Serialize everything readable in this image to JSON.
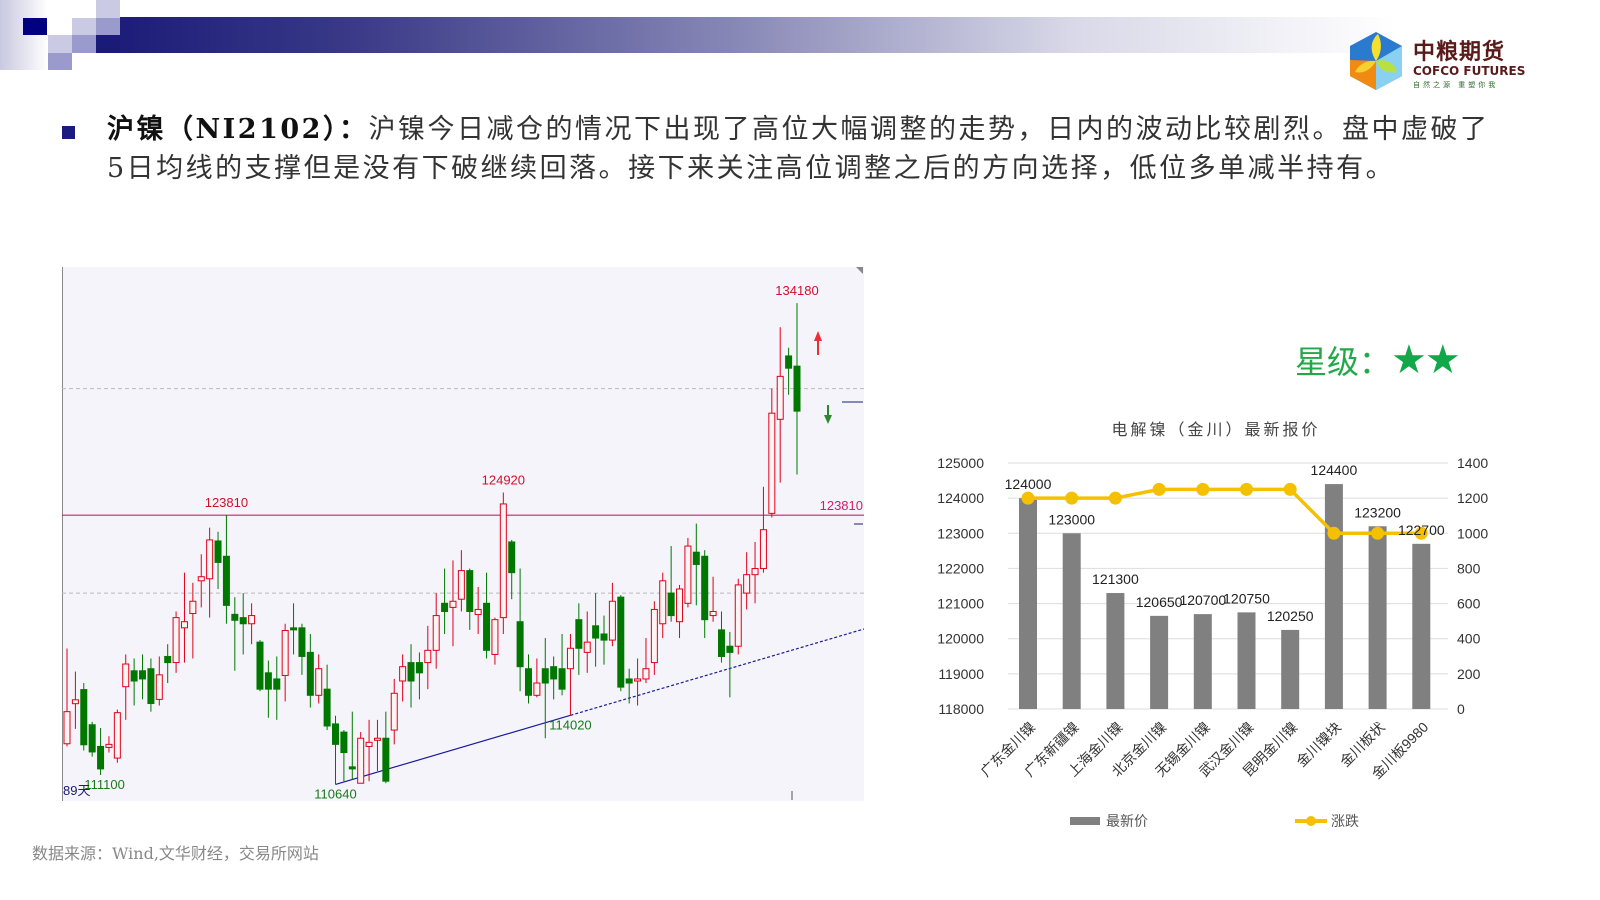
{
  "header": {
    "logo": {
      "name_cn": "中粮期货",
      "name_en": "COFCO FUTURES",
      "slogan": "自然之源 重塑你我"
    },
    "colors": {
      "band_dark": "#1a1a78",
      "band_light": "#ffffff"
    }
  },
  "commentary": {
    "title": "沪镍（NI2102）：",
    "body": "沪镍今日减仓的情况下出现了高位大幅调整的走势，日内的波动比较剧烈。盘中虚破了5日均线的支撑但是没有下破继续回落。接下来关注高位调整之后的方向选择，低位多单减半持有。"
  },
  "rating": {
    "label": "星级：",
    "stars": 2,
    "stars_text": "★★",
    "color": "#22a84a"
  },
  "source": "数据来源：Wind,文华财经，交易所网站",
  "chart_data": [
    {
      "type": "candlestick",
      "period_label": "89天",
      "colors": {
        "up": "#e0001a",
        "down": "#007800",
        "resistance": "#d0206a",
        "trendline": "#1a1aa0"
      },
      "ylim": [
        109830,
        135950
      ],
      "gridlines": [
        120000,
        130000
      ],
      "resistance_level": 123810,
      "annotations": [
        {
          "text": "123810",
          "kind": "high",
          "index": 19
        },
        {
          "text": "124920",
          "kind": "high",
          "index": 52
        },
        {
          "text": "134180",
          "kind": "high",
          "index": 87
        },
        {
          "text": "111100",
          "kind": "low",
          "index": 4
        },
        {
          "text": "110640",
          "kind": "low",
          "index": 32
        },
        {
          "text": "114020",
          "kind": "low",
          "index": 60
        },
        {
          "text": "123810",
          "kind": "right-level"
        }
      ],
      "trendline": {
        "from": {
          "index": 32,
          "price": 110640
        },
        "via": {
          "index": 60,
          "price": 114020
        }
      },
      "ohlc": [
        [
          112630,
          117290,
          112500,
          114200
        ],
        [
          114590,
          116160,
          113360,
          114780
        ],
        [
          115280,
          115600,
          112300,
          112580
        ],
        [
          113560,
          113700,
          112000,
          112230
        ],
        [
          112500,
          113400,
          111100,
          111400
        ],
        [
          112450,
          113000,
          112200,
          112600
        ],
        [
          111930,
          114300,
          111700,
          114150
        ],
        [
          115420,
          117000,
          113800,
          116530
        ],
        [
          116200,
          116800,
          114500,
          115700
        ],
        [
          116200,
          117000,
          114800,
          115800
        ],
        [
          116300,
          116800,
          114200,
          114600
        ],
        [
          114800,
          116900,
          114500,
          116000
        ],
        [
          116900,
          117500,
          115600,
          116600
        ],
        [
          116600,
          119100,
          116100,
          118800
        ],
        [
          118300,
          121000,
          116600,
          118600
        ],
        [
          119000,
          120500,
          116800,
          119600
        ],
        [
          120600,
          121900,
          119300,
          120800
        ],
        [
          120700,
          123200,
          118800,
          122600
        ],
        [
          122550,
          123000,
          120200,
          121500
        ],
        [
          121800,
          123810,
          118500,
          119400
        ],
        [
          118960,
          119800,
          116200,
          118670
        ],
        [
          118800,
          120000,
          117000,
          118500
        ],
        [
          118500,
          119500,
          117500,
          118900
        ],
        [
          117600,
          117700,
          115200,
          115300
        ],
        [
          116100,
          116700,
          113900,
          115300
        ],
        [
          115800,
          116900,
          113800,
          115300
        ],
        [
          115970,
          118500,
          114700,
          118170
        ],
        [
          118300,
          119500,
          117000,
          118200
        ],
        [
          118300,
          118500,
          116000,
          116900
        ],
        [
          117100,
          118000,
          114400,
          115000
        ],
        [
          115000,
          117000,
          114600,
          116300
        ],
        [
          115300,
          116500,
          113300,
          113500
        ],
        [
          113600,
          114000,
          110640,
          112600
        ],
        [
          113200,
          113300,
          110800,
          112200
        ],
        [
          111500,
          114200,
          110900,
          111400
        ],
        [
          110700,
          113200,
          110700,
          112900
        ],
        [
          112500,
          113800,
          110800,
          112700
        ],
        [
          112800,
          113800,
          111300,
          112900
        ],
        [
          112900,
          114200,
          110700,
          110800
        ],
        [
          113300,
          115800,
          112600,
          115100
        ],
        [
          115700,
          117000,
          114700,
          116400
        ],
        [
          116600,
          117500,
          114400,
          115700
        ],
        [
          116600,
          117100,
          114800,
          116100
        ],
        [
          116600,
          118400,
          115300,
          117200
        ],
        [
          117200,
          120000,
          116300,
          118900
        ],
        [
          119500,
          121200,
          118000,
          119100
        ],
        [
          119300,
          121600,
          117400,
          119600
        ],
        [
          119700,
          122100,
          119100,
          121100
        ],
        [
          121100,
          121200,
          118200,
          119100
        ],
        [
          118950,
          120300,
          118000,
          119200
        ],
        [
          119500,
          121000,
          116800,
          117200
        ],
        [
          117000,
          118800,
          116500,
          118700
        ],
        [
          118800,
          124920,
          118000,
          124360
        ],
        [
          122500,
          122600,
          119700,
          121000
        ],
        [
          118600,
          121200,
          115200,
          116400
        ],
        [
          116300,
          117000,
          114600,
          115000
        ],
        [
          115000,
          116800,
          114900,
          115600
        ],
        [
          116300,
          117800,
          112900,
          115600
        ],
        [
          116400,
          116900,
          114800,
          115800
        ],
        [
          116300,
          118000,
          115000,
          115300
        ],
        [
          116300,
          118000,
          114020,
          117300
        ],
        [
          118700,
          119500,
          116000,
          117300
        ],
        [
          117100,
          119100,
          116100,
          117600
        ],
        [
          118400,
          120000,
          116400,
          117800
        ],
        [
          118000,
          118900,
          116500,
          117700
        ],
        [
          117700,
          120500,
          117400,
          119600
        ],
        [
          119800,
          119900,
          115200,
          115400
        ],
        [
          115800,
          116300,
          114600,
          115600
        ],
        [
          115700,
          116800,
          114500,
          115800
        ],
        [
          115800,
          117800,
          115600,
          116300
        ],
        [
          116600,
          119600,
          116000,
          119200
        ],
        [
          118500,
          121000,
          117800,
          120600
        ],
        [
          120000,
          122300,
          118600,
          118900
        ],
        [
          118600,
          120400,
          117800,
          120200
        ],
        [
          119500,
          122700,
          119300,
          122300
        ],
        [
          122000,
          123400,
          119400,
          121400
        ],
        [
          121800,
          122100,
          117800,
          118700
        ],
        [
          118900,
          120800,
          118600,
          119100
        ],
        [
          118200,
          119100,
          116600,
          116900
        ],
        [
          117400,
          118100,
          114900,
          117100
        ],
        [
          117400,
          120700,
          117000,
          120400
        ],
        [
          120000,
          122000,
          119200,
          120900
        ],
        [
          120900,
          122500,
          119500,
          121200
        ],
        [
          121200,
          125200,
          121000,
          123100
        ],
        [
          123900,
          130000,
          123700,
          128800
        ],
        [
          128500,
          133000,
          125400,
          130600
        ],
        [
          131600,
          132000,
          129700,
          131000
        ],
        [
          131100,
          134180,
          125800,
          128900
        ]
      ]
    },
    {
      "type": "bar+line",
      "title": "电解镍（金川）最新报价",
      "categories": [
        "广东金川镍",
        "广东新疆镍",
        "上海金川镍",
        "北京金川镍",
        "无锡金川镍",
        "武汉金川镍",
        "昆明金川镍",
        "金川镍块",
        "金川板状",
        "金川板9980"
      ],
      "series": [
        {
          "name": "最新价",
          "type": "bar",
          "axis": "left",
          "color": "#808080",
          "values": [
            124000,
            123000,
            121300,
            120650,
            120700,
            120750,
            120250,
            124400,
            123200,
            122700
          ]
        },
        {
          "name": "涨跌",
          "type": "line",
          "axis": "right",
          "color": "#f5c000",
          "values": [
            1200,
            1200,
            1200,
            1250,
            1250,
            1250,
            1250,
            1000,
            1000,
            1000
          ]
        }
      ],
      "left_axis": {
        "ylim": [
          118000,
          125000
        ],
        "ticks": [
          "125000",
          "124000",
          "123000",
          "122000",
          "121000",
          "120000",
          "119000",
          "118000"
        ]
      },
      "right_axis": {
        "ylim": [
          0,
          1400
        ],
        "ticks": [
          "1400",
          "1200",
          "1000",
          "800",
          "600",
          "400",
          "200",
          "0"
        ]
      },
      "grid": true,
      "legend": "bottom"
    }
  ]
}
